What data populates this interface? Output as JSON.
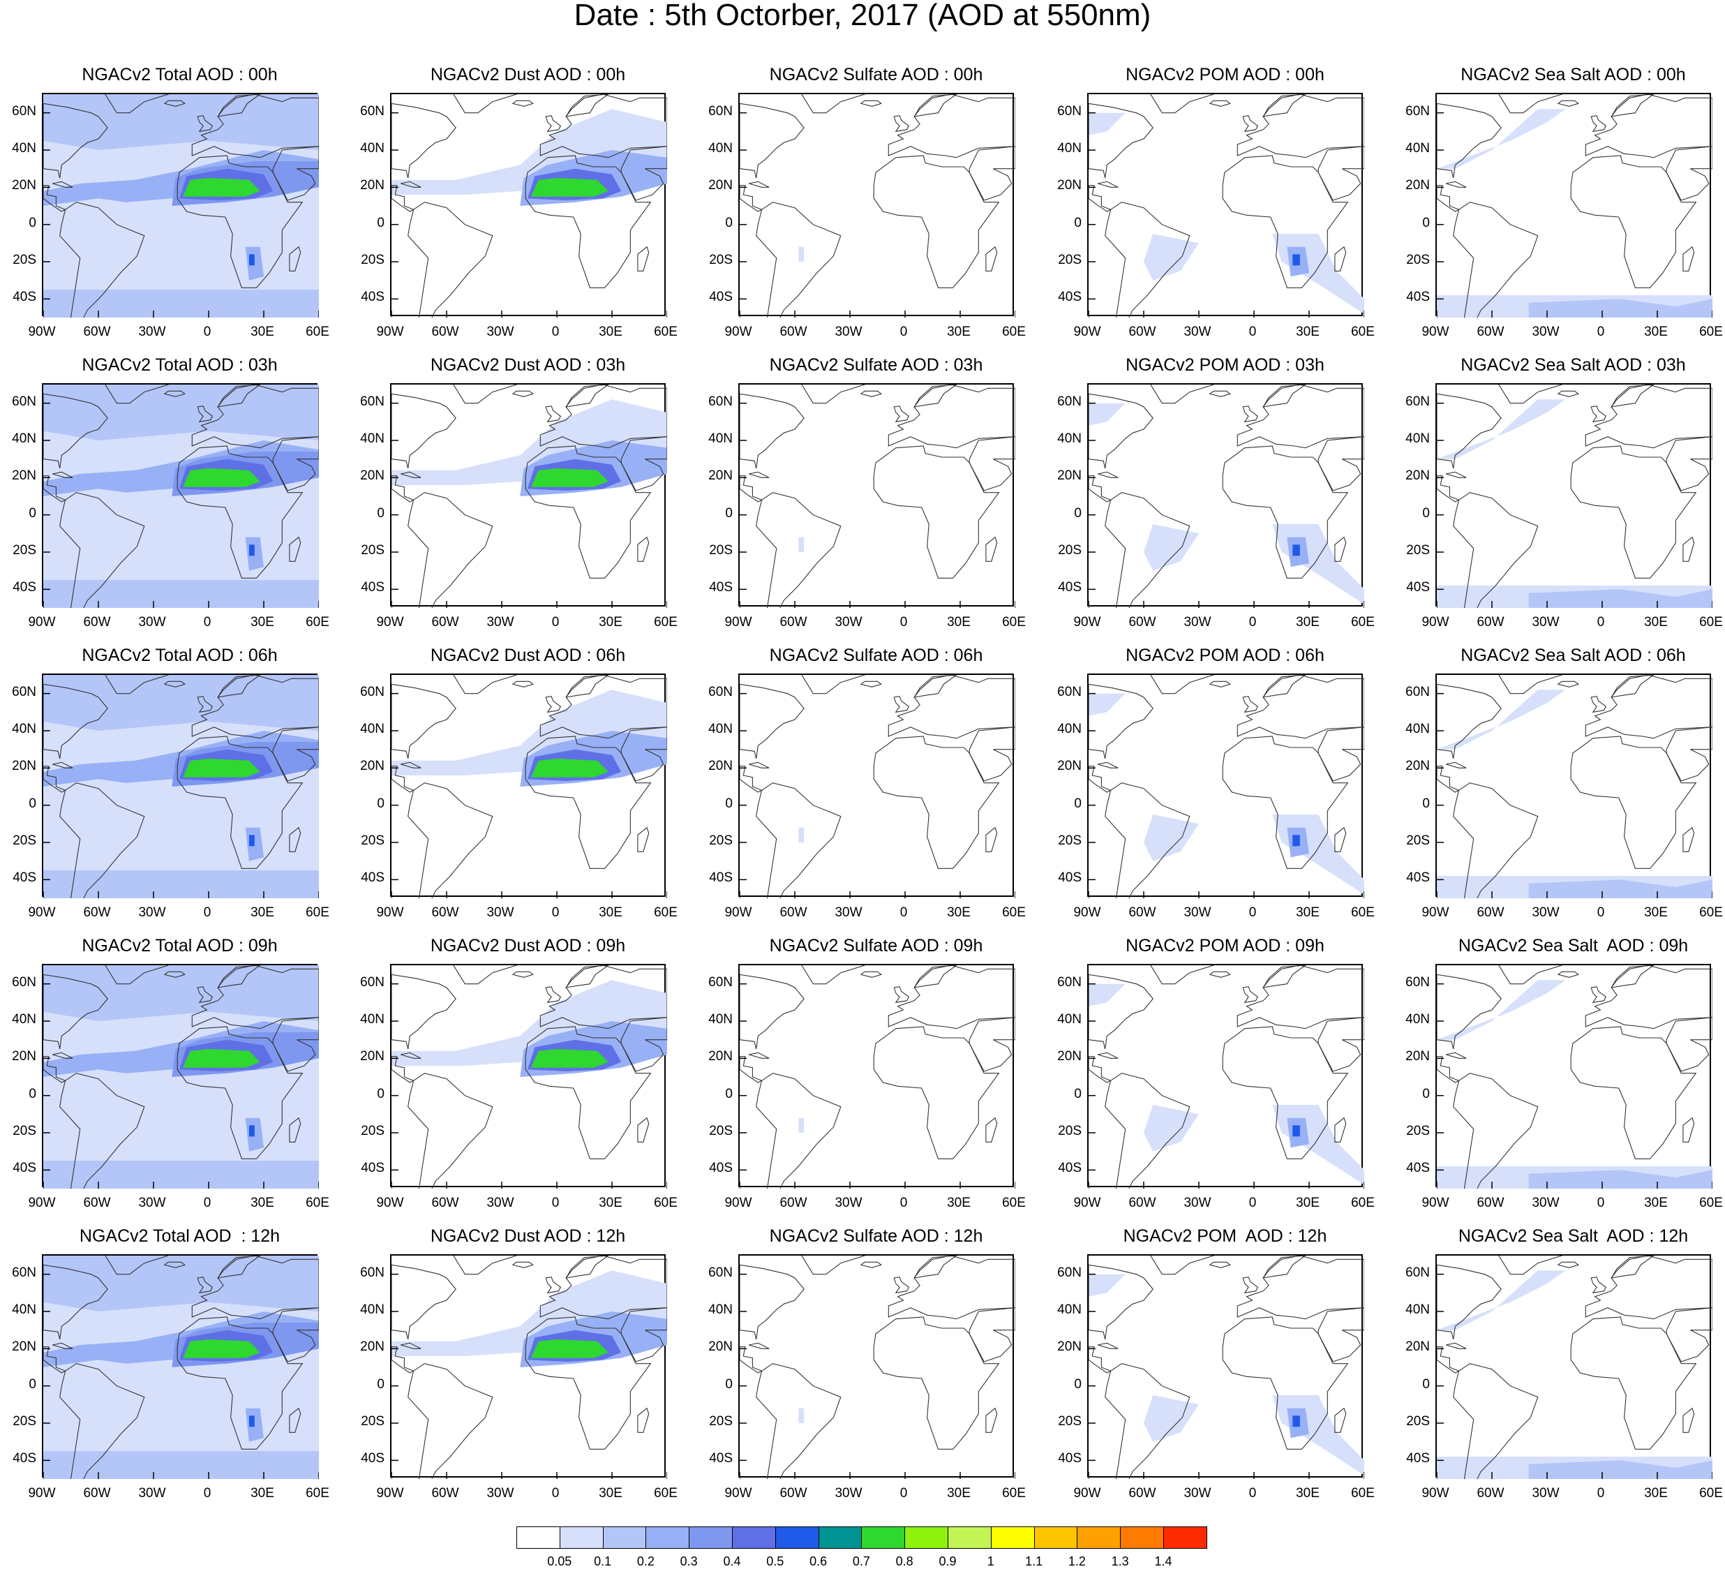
{
  "title": "Date : 5th Octorber, 2017 (AOD at 550nm)",
  "panels": [
    [
      {
        "title": "NGACv2 Total AOD : 00h",
        "species": "total"
      },
      {
        "title": "NGACv2 Dust AOD : 00h",
        "species": "dust"
      },
      {
        "title": "NGACv2 Sulfate AOD : 00h",
        "species": "sulfate"
      },
      {
        "title": "NGACv2 POM AOD : 00h",
        "species": "pom"
      },
      {
        "title": "NGACv2 Sea Salt AOD : 00h",
        "species": "seasalt"
      }
    ],
    [
      {
        "title": "NGACv2 Total AOD : 03h",
        "species": "total"
      },
      {
        "title": "NGACv2 Dust AOD : 03h",
        "species": "dust"
      },
      {
        "title": "NGACv2 Sulfate AOD : 03h",
        "species": "sulfate"
      },
      {
        "title": "NGACv2 POM AOD : 03h",
        "species": "pom"
      },
      {
        "title": "NGACv2 Sea Salt AOD : 03h",
        "species": "seasalt"
      }
    ],
    [
      {
        "title": "NGACv2 Total AOD : 06h",
        "species": "total"
      },
      {
        "title": "NGACv2 Dust AOD : 06h",
        "species": "dust"
      },
      {
        "title": "NGACv2 Sulfate AOD : 06h",
        "species": "sulfate"
      },
      {
        "title": "NGACv2 POM AOD : 06h",
        "species": "pom"
      },
      {
        "title": "NGACv2 Sea Salt AOD : 06h",
        "species": "seasalt"
      }
    ],
    [
      {
        "title": "NGACv2 Total AOD : 09h",
        "species": "total"
      },
      {
        "title": "NGACv2 Dust AOD : 09h",
        "species": "dust"
      },
      {
        "title": "NGACv2 Sulfate AOD : 09h",
        "species": "sulfate"
      },
      {
        "title": "NGACv2 POM AOD : 09h",
        "species": "pom"
      },
      {
        "title": "NGACv2 Sea Salt  AOD : 09h",
        "species": "seasalt"
      }
    ],
    [
      {
        "title": "NGACv2 Total AOD  : 12h",
        "species": "total"
      },
      {
        "title": "NGACv2 Dust AOD : 12h",
        "species": "dust"
      },
      {
        "title": "NGACv2 Sulfate AOD : 12h",
        "species": "sulfate"
      },
      {
        "title": "NGACv2 POM  AOD : 12h",
        "species": "pom"
      },
      {
        "title": "NGACv2 Sea Salt  AOD : 12h",
        "species": "seasalt"
      }
    ]
  ],
  "chart_data": {
    "type": "heatmap",
    "title": "Date : 5th Octorber, 2017 (AOD at 550nm)",
    "x_range": [
      -90,
      60
    ],
    "y_range": [
      -50,
      70
    ],
    "x_tick_labels": [
      "90W",
      "60W",
      "30W",
      "0",
      "30E",
      "60E"
    ],
    "y_tick_labels": [
      "60N",
      "40N",
      "20N",
      "0",
      "20S",
      "40S"
    ],
    "x_tick_values": [
      -90,
      -60,
      -30,
      0,
      30,
      60
    ],
    "y_tick_values": [
      60,
      40,
      20,
      0,
      -20,
      -40
    ],
    "times": [
      "00h",
      "03h",
      "06h",
      "09h",
      "12h"
    ],
    "species": [
      "Total",
      "Dust",
      "Sulfate",
      "POM",
      "Sea Salt"
    ],
    "colorbar": {
      "labels": [
        "0.05",
        "0.1",
        "0.2",
        "0.3",
        "0.4",
        "0.5",
        "0.6",
        "0.7",
        "0.8",
        "0.9",
        "1",
        "1.1",
        "1.2",
        "1.3",
        "1.4"
      ],
      "colors": [
        "#ffffff",
        "#d6e0fb",
        "#b4c6f8",
        "#98b0f5",
        "#7e98f0",
        "#5f70e6",
        "#1f5ae8",
        "#009393",
        "#2ed82e",
        "#8ff20c",
        "#c2f554",
        "#ffff00",
        "#ffc400",
        "#ffa000",
        "#ff7a00",
        "#ff2a00"
      ]
    }
  }
}
